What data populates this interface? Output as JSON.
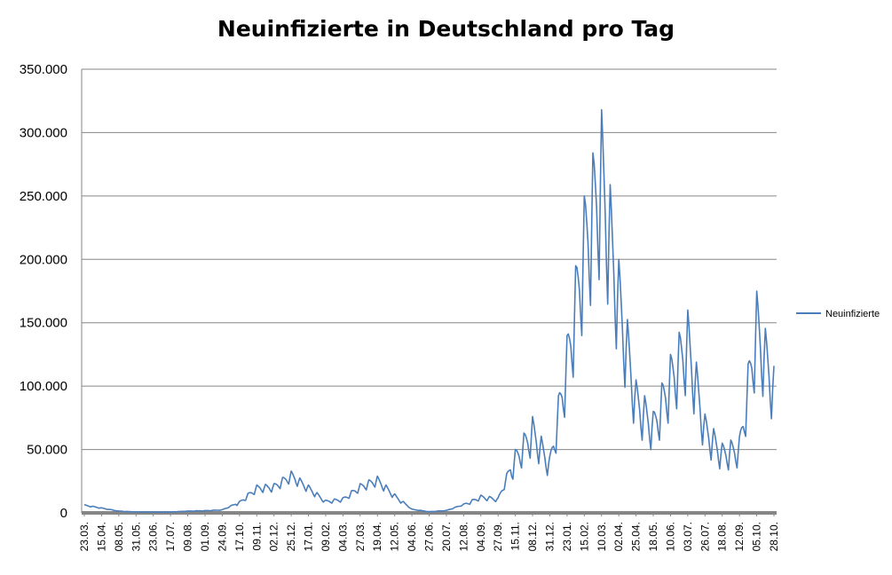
{
  "chart_data": {
    "type": "line",
    "title": "Neuinfizierte in Deutschland pro Tag",
    "xlabel": "",
    "ylabel": "",
    "ylim": [
      0,
      350000
    ],
    "y_ticks": [
      "0",
      "50.000",
      "100.000",
      "150.000",
      "200.000",
      "250.000",
      "300.000",
      "350.000"
    ],
    "x_ticks": [
      "23.03.",
      "15.04.",
      "08.05.",
      "31.05.",
      "23.06.",
      "17.07.",
      "09.08.",
      "01.09.",
      "24.09.",
      "17.10.",
      "09.11.",
      "02.12.",
      "25.12.",
      "17.01.",
      "09.02.",
      "04.03.",
      "27.03.",
      "19.04.",
      "12.05.",
      "04.06.",
      "27.06.",
      "20.07.",
      "12.08.",
      "04.09.",
      "27.09.",
      "15.11.",
      "08.12.",
      "31.12.",
      "23.01.",
      "15.02.",
      "10.03.",
      "02.04.",
      "25.04.",
      "18.05.",
      "10.06.",
      "03.07.",
      "26.07.",
      "18.08.",
      "12.09.",
      "05.10.",
      "28.10."
    ],
    "grid": true,
    "legend_position": "right",
    "weekly_cycle": true,
    "series": [
      {
        "name": "Neuinfizierte",
        "color": "#4a7ebb",
        "approx_weekly_peaks": [
          [
            "23.03.",
            6500
          ],
          [
            "15.04.",
            4000
          ],
          [
            "08.05.",
            1500
          ],
          [
            "31.05.",
            800
          ],
          [
            "23.06.",
            700
          ],
          [
            "17.07.",
            700
          ],
          [
            "09.08.",
            1500
          ],
          [
            "01.09.",
            1800
          ],
          [
            "24.09.",
            2500
          ],
          [
            "17.10.",
            9000
          ],
          [
            "09.11.",
            22000
          ],
          [
            "02.12.",
            23000
          ],
          [
            "25.12.",
            33000
          ],
          [
            "17.01.",
            22000
          ],
          [
            "09.02.",
            10000
          ],
          [
            "04.03.",
            12000
          ],
          [
            "27.03.",
            23000
          ],
          [
            "19.04.",
            29000
          ],
          [
            "12.05.",
            15000
          ],
          [
            "04.06.",
            3000
          ],
          [
            "27.06.",
            1000
          ],
          [
            "20.07.",
            2000
          ],
          [
            "12.08.",
            7000
          ],
          [
            "04.09.",
            14000
          ],
          [
            "27.09.",
            12000
          ],
          [
            "15.11.",
            50000
          ],
          [
            "08.12.",
            76000
          ],
          [
            "31.12.",
            45000
          ],
          [
            "23.01.",
            140000
          ],
          [
            "15.02.",
            250000
          ],
          [
            "10.03.",
            318000
          ],
          [
            "02.04.",
            200000
          ],
          [
            "25.04.",
            105000
          ],
          [
            "18.05.",
            80000
          ],
          [
            "10.06.",
            125000
          ],
          [
            "03.07.",
            160000
          ],
          [
            "26.07.",
            78000
          ],
          [
            "18.08.",
            55000
          ],
          [
            "12.09.",
            60000
          ],
          [
            "05.10.",
            175000
          ],
          [
            "28.10.",
            116000
          ]
        ]
      }
    ]
  }
}
